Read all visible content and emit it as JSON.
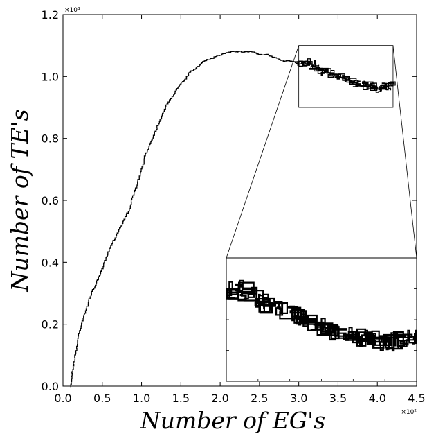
{
  "chart_data": {
    "type": "line",
    "title": "",
    "xlabel": "Number of EG's",
    "ylabel": "Number of TE's",
    "x_scale_label": "×10²",
    "y_scale_label": "×10³",
    "xlim": [
      0.0,
      4.5
    ],
    "ylim": [
      0.0,
      1.2
    ],
    "x_ticks": [
      "0.0",
      "0.5",
      "1.0",
      "1.5",
      "2.0",
      "2.5",
      "3.0",
      "3.5",
      "4.0",
      "4.5"
    ],
    "y_ticks": [
      "0.0",
      "0.2",
      "0.4",
      "0.6",
      "0.8",
      "1.0",
      "1.2"
    ],
    "grid": false,
    "series": [
      {
        "color": "#000000",
        "points": [
          [
            0.1,
            0.0
          ],
          [
            0.11,
            0.03
          ],
          [
            0.12,
            0.05
          ],
          [
            0.14,
            0.08
          ],
          [
            0.17,
            0.12
          ],
          [
            0.2,
            0.17
          ],
          [
            0.25,
            0.22
          ],
          [
            0.3,
            0.25
          ],
          [
            0.34,
            0.29
          ],
          [
            0.4,
            0.32
          ],
          [
            0.45,
            0.35
          ],
          [
            0.5,
            0.38
          ],
          [
            0.55,
            0.42
          ],
          [
            0.6,
            0.45
          ],
          [
            0.66,
            0.48
          ],
          [
            0.72,
            0.51
          ],
          [
            0.78,
            0.54
          ],
          [
            0.85,
            0.58
          ],
          [
            0.9,
            0.62
          ],
          [
            0.95,
            0.66
          ],
          [
            1.0,
            0.7
          ],
          [
            1.05,
            0.75
          ],
          [
            1.1,
            0.78
          ],
          [
            1.15,
            0.81
          ],
          [
            1.2,
            0.84
          ],
          [
            1.25,
            0.87
          ],
          [
            1.3,
            0.9
          ],
          [
            1.35,
            0.92
          ],
          [
            1.4,
            0.94
          ],
          [
            1.45,
            0.96
          ],
          [
            1.5,
            0.98
          ],
          [
            1.55,
            0.99
          ],
          [
            1.6,
            1.01
          ],
          [
            1.65,
            1.02
          ],
          [
            1.7,
            1.03
          ],
          [
            1.8,
            1.05
          ],
          [
            1.9,
            1.06
          ],
          [
            2.0,
            1.07
          ],
          [
            2.1,
            1.08
          ],
          [
            2.2,
            1.08
          ],
          [
            2.3,
            1.08
          ],
          [
            2.4,
            1.08
          ],
          [
            2.5,
            1.07
          ],
          [
            2.6,
            1.07
          ],
          [
            2.7,
            1.06
          ],
          [
            2.8,
            1.05
          ],
          [
            2.9,
            1.05
          ],
          [
            3.0,
            1.04
          ],
          [
            3.1,
            1.05
          ],
          [
            3.2,
            1.03
          ],
          [
            3.3,
            1.02
          ],
          [
            3.4,
            1.01
          ],
          [
            3.5,
            1.0
          ],
          [
            3.6,
            0.99
          ],
          [
            3.7,
            0.98
          ],
          [
            3.8,
            0.97
          ],
          [
            3.9,
            0.97
          ],
          [
            4.0,
            0.96
          ],
          [
            4.1,
            0.97
          ],
          [
            4.2,
            0.97
          ]
        ]
      }
    ],
    "annotations": [
      {
        "type": "zoom-inset",
        "source_region": {
          "x": [
            3.0,
            4.2
          ],
          "y": [
            0.9,
            1.1
          ]
        }
      }
    ]
  }
}
